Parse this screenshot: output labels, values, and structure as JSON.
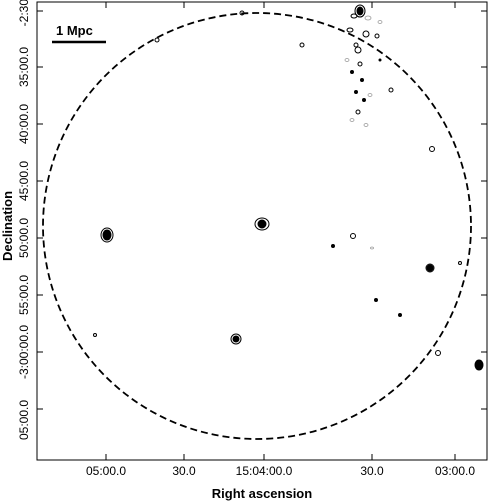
{
  "figure": {
    "x_axis_title": "Right ascension",
    "y_axis_title": "Declination",
    "scale_bar_label": "1 Mpc",
    "x_tick_labels": [
      "05:00.0",
      "30.0",
      "15:04:00.0",
      "30.0",
      "03:00.0"
    ],
    "y_tick_labels": [
      "-2:30:",
      "35:00.0",
      "40:00.0",
      "45:00.0",
      "50:00.0",
      "55:00.0",
      "-3:00:00.0",
      "05:00.0"
    ]
  }
}
